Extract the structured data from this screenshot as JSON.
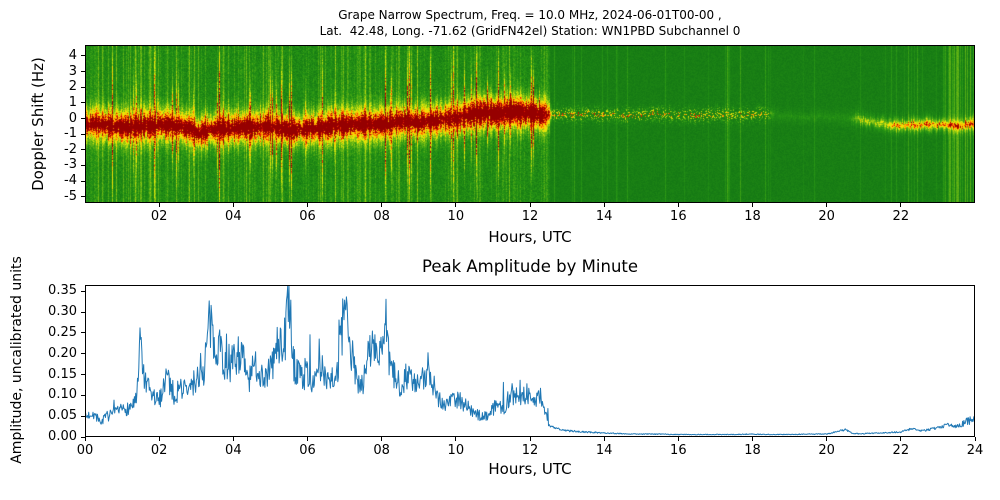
{
  "spectrogram": {
    "title_line1": "Grape Narrow Spectrum, Freq. = 10.0 MHz, 2024-06-01T00-00 ,",
    "title_line2": "Lat.  42.48, Long. -71.62 (GridFN42el) Station: WN1PBD Subchannel 0",
    "ylabel": "Doppler Shift (Hz)",
    "xlabel": "Hours, UTC",
    "yticks": [
      "4",
      "3",
      "2",
      "1",
      "0",
      "-1",
      "-2",
      "-3",
      "-4",
      "-5"
    ],
    "xticks": [
      "02",
      "04",
      "06",
      "08",
      "10",
      "12",
      "14",
      "16",
      "18",
      "20",
      "22"
    ],
    "xlim": [
      0,
      24
    ],
    "ylim": [
      -5.4,
      4.7
    ]
  },
  "amplitude": {
    "title": "Peak Amplitude by Minute",
    "ylabel": "Amplitude, uncalibrated units",
    "xlabel": "Hours, UTC",
    "yticks": [
      "0.00",
      "0.05",
      "0.10",
      "0.15",
      "0.20",
      "0.25",
      "0.30",
      "0.35"
    ],
    "xticks": [
      "00",
      "02",
      "04",
      "06",
      "08",
      "10",
      "12",
      "14",
      "16",
      "18",
      "20",
      "22",
      "24"
    ],
    "xlim": [
      0,
      24
    ],
    "ylim": [
      0,
      0.365
    ]
  },
  "chart_data": [
    {
      "type": "heatmap",
      "title": "Grape Narrow Spectrum, Freq. = 10.0 MHz, 2024-06-01T00-00 , Lat. 42.48, Long. -71.62 (GridFN42el) Station: WN1PBD Subchannel 0",
      "xlabel": "Hours, UTC",
      "ylabel": "Doppler Shift (Hz)",
      "xlim": [
        0,
        24
      ],
      "ylim": [
        -5.4,
        4.7
      ],
      "description": "Doppler spectrogram: strong red/yellow Doppler trace meandering near 0 Hz from 00:00 to ~12:30 UTC (dipping to about -1 Hz near 03:00), very bright yellow patch 10:30-12:30 near +0.3 Hz, faint dotted trace 12:30-18:30, nearly quiet green 18:30-21:00, weak orange trace 21:00-24:00 near -0.4 Hz, all over a green noise background with vertical interference streaks (dense before 12:30, strong again 23:15-24:00).",
      "band_center": {
        "t": [
          0,
          1,
          2,
          2.6,
          3.1,
          3.6,
          4.2,
          5,
          5.6,
          6.3,
          7,
          8,
          8.6,
          9,
          9.6,
          10,
          10.6,
          11,
          11.5,
          12,
          12.5,
          13.5,
          14.5,
          15.5,
          16.5,
          17.5,
          18.3,
          19,
          20,
          20.8,
          21.3,
          22,
          22.8,
          23.5,
          24
        ],
        "value": [
          -0.3,
          -0.55,
          -0.4,
          -0.5,
          -0.95,
          -0.55,
          -0.6,
          -0.5,
          -0.75,
          -0.6,
          -0.4,
          -0.35,
          -0.15,
          -0.25,
          -0.1,
          0.0,
          0.35,
          0.3,
          0.45,
          0.3,
          0.25,
          0.3,
          0.2,
          0.3,
          0.2,
          0.25,
          0.3,
          0.1,
          0.1,
          0.0,
          -0.3,
          -0.45,
          -0.4,
          -0.45,
          -0.35
        ]
      },
      "band_intensity": {
        "t": [
          0,
          9.5,
          10.3,
          12.3,
          12.6,
          13,
          18.4,
          18.6,
          20.6,
          20.9,
          21.6,
          21.9,
          23,
          24
        ],
        "value": [
          0.85,
          0.85,
          1.0,
          1.0,
          0.3,
          0.3,
          0.28,
          0.06,
          0.06,
          0.25,
          0.3,
          0.45,
          0.5,
          0.5
        ]
      },
      "colormap_stops": [
        [
          0.0,
          [
            14,
            110,
            20
          ]
        ],
        [
          0.22,
          [
            40,
            150,
            20
          ]
        ],
        [
          0.42,
          [
            120,
            190,
            20
          ]
        ],
        [
          0.58,
          [
            230,
            235,
            10
          ]
        ],
        [
          0.7,
          [
            255,
            210,
            0
          ]
        ],
        [
          0.8,
          [
            255,
            130,
            0
          ]
        ],
        [
          0.9,
          [
            235,
            30,
            0
          ]
        ],
        [
          1.0,
          [
            150,
            0,
            0
          ]
        ]
      ]
    },
    {
      "type": "line",
      "title": "Peak Amplitude by Minute",
      "xlabel": "Hours, UTC",
      "ylabel": "Amplitude, uncalibrated units",
      "xlim": [
        0,
        24
      ],
      "ylim": [
        0,
        0.365
      ],
      "color": "#1f77b4",
      "x": [
        0,
        0.2,
        0.4,
        0.6,
        0.8,
        1.0,
        1.2,
        1.4,
        1.5,
        1.6,
        1.8,
        2.0,
        2.2,
        2.4,
        2.6,
        2.8,
        3.0,
        3.2,
        3.35,
        3.5,
        3.6,
        3.8,
        4.0,
        4.2,
        4.4,
        4.6,
        4.8,
        5.0,
        5.2,
        5.4,
        5.5,
        5.6,
        5.8,
        6.0,
        6.2,
        6.4,
        6.6,
        6.8,
        7.0,
        7.1,
        7.3,
        7.5,
        7.7,
        7.9,
        8.1,
        8.3,
        8.5,
        8.7,
        8.9,
        9.1,
        9.3,
        9.5,
        9.7,
        9.9,
        10.1,
        10.3,
        10.5,
        10.7,
        10.9,
        11.1,
        11.3,
        11.5,
        11.7,
        11.9,
        12.1,
        12.3,
        12.5,
        12.7,
        13.0,
        13.5,
        14.0,
        14.5,
        15.0,
        15.5,
        16.0,
        16.5,
        17.0,
        17.5,
        18.0,
        18.5,
        19.0,
        19.5,
        20.0,
        20.5,
        20.7,
        21.0,
        21.5,
        22.0,
        22.3,
        22.6,
        23.0,
        23.3,
        23.5,
        23.8,
        24.0
      ],
      "y": [
        0.045,
        0.06,
        0.035,
        0.05,
        0.055,
        0.065,
        0.07,
        0.09,
        0.235,
        0.13,
        0.1,
        0.085,
        0.155,
        0.1,
        0.12,
        0.11,
        0.14,
        0.155,
        0.275,
        0.21,
        0.24,
        0.16,
        0.18,
        0.21,
        0.13,
        0.175,
        0.145,
        0.16,
        0.22,
        0.235,
        0.36,
        0.18,
        0.145,
        0.155,
        0.13,
        0.16,
        0.145,
        0.15,
        0.305,
        0.245,
        0.145,
        0.13,
        0.22,
        0.205,
        0.225,
        0.15,
        0.125,
        0.155,
        0.12,
        0.135,
        0.155,
        0.1,
        0.075,
        0.095,
        0.09,
        0.075,
        0.055,
        0.05,
        0.055,
        0.08,
        0.07,
        0.105,
        0.09,
        0.105,
        0.085,
        0.1,
        0.03,
        0.02,
        0.015,
        0.012,
        0.01,
        0.008,
        0.007,
        0.007,
        0.006,
        0.006,
        0.006,
        0.006,
        0.007,
        0.006,
        0.006,
        0.007,
        0.007,
        0.018,
        0.008,
        0.008,
        0.01,
        0.012,
        0.02,
        0.015,
        0.022,
        0.03,
        0.025,
        0.038,
        0.045
      ]
    }
  ]
}
